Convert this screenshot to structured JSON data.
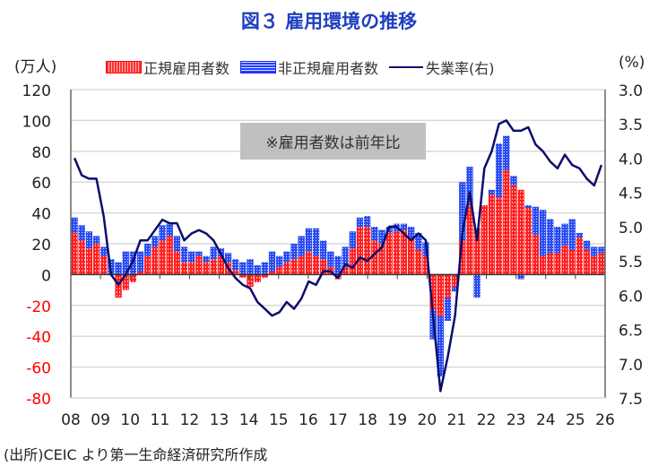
{
  "chart_data": {
    "type": "bar",
    "title": "図３ 雇用環境の推移",
    "left_unit": "(万人)",
    "right_unit": "(%)",
    "source": "(出所)CEIC より第一生命経済研究所作成",
    "note": "※雇用者数は前年比",
    "legend": [
      "正規雇用者数",
      "非正規雇用者数",
      "失業率(右)"
    ],
    "legend_placement": "top",
    "colors": {
      "regular": "#ff2020",
      "nonregular": "#2a4cf0",
      "unemployment": "#0d0d6e",
      "negative_tick": "#ff0000"
    },
    "ylim": [
      -80,
      120
    ],
    "y_ticks": [
      "120",
      "100",
      "80",
      "60",
      "40",
      "20",
      "0",
      "-20",
      "-40",
      "-60",
      "-80"
    ],
    "y2lim_inverted": [
      3.0,
      7.5
    ],
    "y2_ticks": [
      "3.0",
      "3.5",
      "4.0",
      "4.5",
      "5.0",
      "5.5",
      "6.0",
      "6.5",
      "7.0",
      "7.5"
    ],
    "x_ticks": [
      "08",
      "09",
      "10",
      "11",
      "12",
      "13",
      "14",
      "15",
      "16",
      "17",
      "18",
      "19",
      "20",
      "21",
      "22",
      "23",
      "24",
      "25",
      "26"
    ],
    "x_start": 2008.0,
    "x_end": 2026.0,
    "frequency": "quarterly",
    "series": [
      {
        "name": "正規雇用者数",
        "values": [
          27,
          22,
          17,
          20,
          12,
          0,
          -15,
          -10,
          -5,
          2,
          12,
          18,
          22,
          25,
          15,
          8,
          8,
          12,
          8,
          10,
          12,
          8,
          3,
          -2,
          -8,
          -5,
          -2,
          2,
          5,
          8,
          10,
          12,
          15,
          12,
          10,
          5,
          -3,
          5,
          17,
          31,
          31,
          22,
          20,
          27,
          28,
          29,
          24,
          16,
          12,
          -23,
          -27,
          -15,
          -8,
          22,
          45,
          30,
          45,
          52,
          50,
          68,
          58,
          55,
          43,
          26,
          12,
          14,
          14,
          19,
          16,
          24,
          16,
          12,
          14
        ]
      },
      {
        "name": "非正規雇用者数",
        "values": [
          10,
          10,
          11,
          5,
          6,
          10,
          8,
          15,
          15,
          13,
          8,
          7,
          10,
          8,
          10,
          10,
          7,
          3,
          4,
          8,
          5,
          6,
          7,
          8,
          10,
          6,
          8,
          13,
          7,
          7,
          10,
          13,
          15,
          18,
          12,
          10,
          12,
          13,
          11,
          6,
          7,
          9,
          9,
          4,
          5,
          4,
          7,
          11,
          9,
          -19,
          -39,
          -15,
          -3,
          38,
          25,
          -15,
          0,
          3,
          35,
          22,
          6,
          -3,
          2,
          18,
          30,
          22,
          17,
          14,
          20,
          3,
          6,
          6,
          4
        ]
      },
      {
        "name": "失業率(右)",
        "axis": "right",
        "values": [
          4.0,
          4.25,
          4.3,
          4.3,
          4.85,
          5.7,
          5.85,
          5.7,
          5.5,
          5.2,
          5.2,
          5.05,
          4.9,
          4.95,
          4.95,
          5.2,
          5.1,
          5.05,
          5.1,
          5.2,
          5.4,
          5.6,
          5.75,
          5.85,
          5.9,
          6.1,
          6.2,
          6.3,
          6.25,
          6.1,
          6.2,
          6.05,
          5.8,
          5.85,
          5.65,
          5.65,
          5.75,
          5.55,
          5.6,
          5.45,
          5.5,
          5.4,
          5.3,
          5.0,
          5.0,
          5.1,
          5.2,
          5.1,
          5.2,
          6.3,
          7.4,
          6.9,
          6.3,
          5.1,
          4.5,
          5.2,
          4.15,
          3.9,
          3.5,
          3.45,
          3.6,
          3.6,
          3.55,
          3.8,
          3.9,
          4.05,
          4.15,
          3.95,
          4.1,
          4.15,
          4.3,
          4.4,
          4.1
        ]
      }
    ]
  }
}
